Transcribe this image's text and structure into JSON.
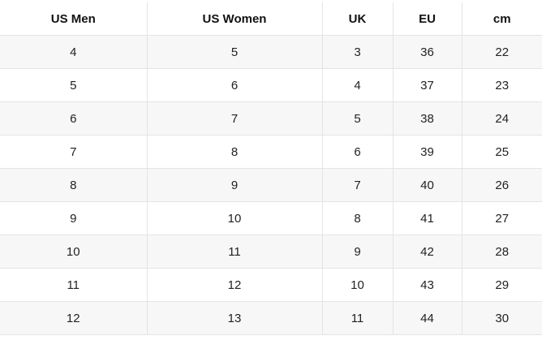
{
  "table": {
    "headers": [
      "US Men",
      "US Women",
      "UK",
      "EU",
      "cm"
    ],
    "rows": [
      [
        "4",
        "5",
        "3",
        "36",
        "22"
      ],
      [
        "5",
        "6",
        "4",
        "37",
        "23"
      ],
      [
        "6",
        "7",
        "5",
        "38",
        "24"
      ],
      [
        "7",
        "8",
        "6",
        "39",
        "25"
      ],
      [
        "8",
        "9",
        "7",
        "40",
        "26"
      ],
      [
        "9",
        "10",
        "8",
        "41",
        "27"
      ],
      [
        "10",
        "11",
        "9",
        "42",
        "28"
      ],
      [
        "11",
        "12",
        "10",
        "43",
        "29"
      ],
      [
        "12",
        "13",
        "11",
        "44",
        "30"
      ]
    ]
  },
  "colors": {
    "row_alt": "#f7f7f7",
    "row_plain": "#ffffff",
    "border": "#e4e4e4"
  }
}
